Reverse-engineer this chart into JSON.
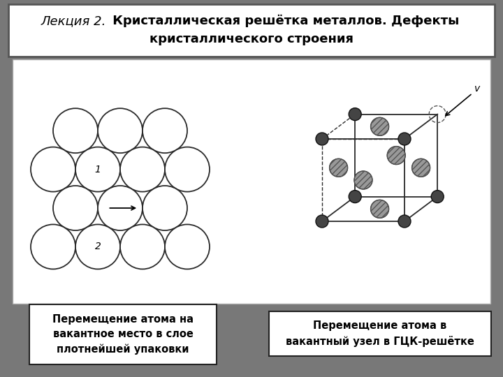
{
  "title_italic": "Лекция 2.",
  "title_bold_line1": " Кристаллическая решётка металлов. Дефекты",
  "title_bold_line2": "кристаллического строения",
  "bg_color": "#787878",
  "header_bg": "#ffffff",
  "content_bg": "#ffffff",
  "caption_left": "Перемещение атома на\nвакантное место в слое\nплотнейшей упаковки",
  "caption_right": "Перемещение атома в\nвакантный узел в ГЦК-решётке",
  "label1": "1",
  "label2": "2",
  "label_v": "v"
}
